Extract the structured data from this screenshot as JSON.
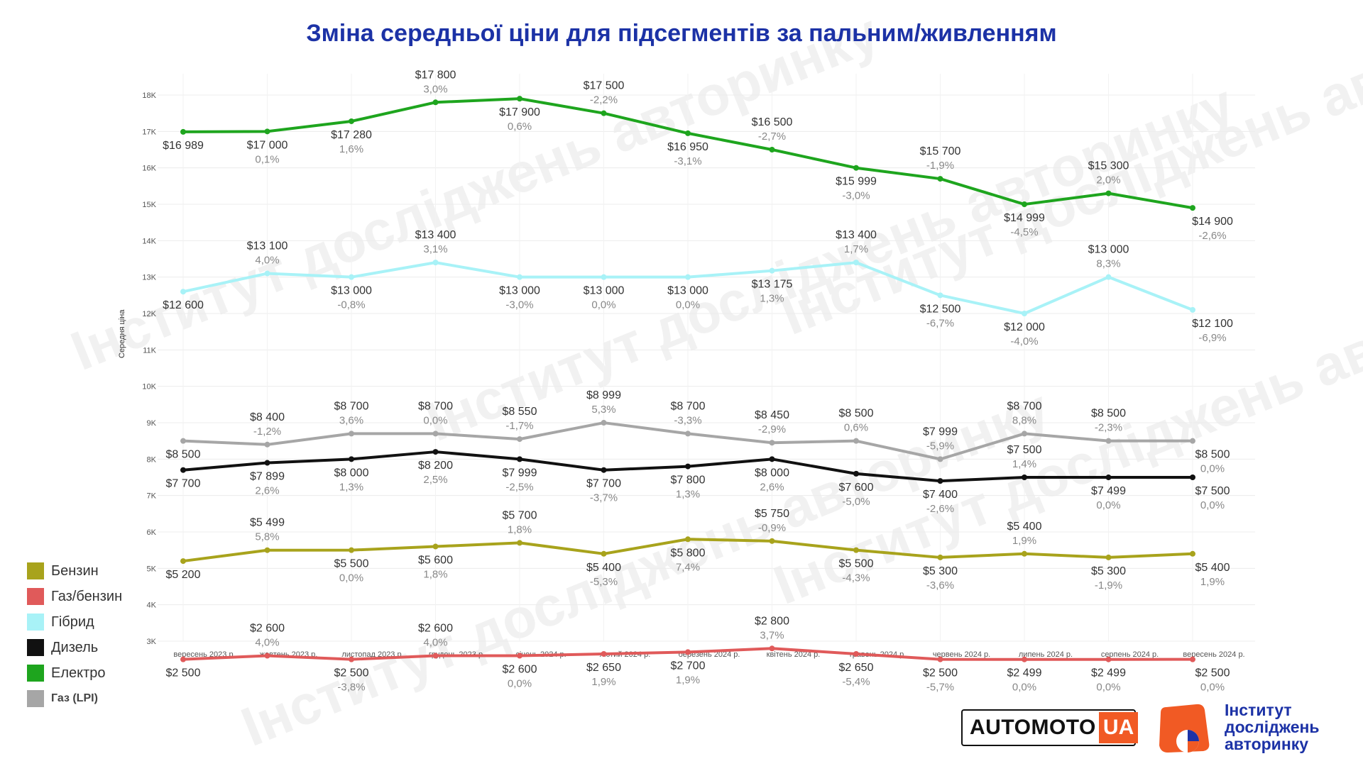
{
  "title": "Зміна середньої ціни для підсегментів за пальним/живленням",
  "watermark_text": "Інститут досліджень авторинку",
  "chart_data": {
    "type": "line",
    "title": "Зміна середньої ціни для підсегментів за пальним/живленням",
    "xlabel": "",
    "ylabel": "Середня ціна",
    "ylim": [
      3000,
      18000
    ],
    "yticks": [
      "3K",
      "4K",
      "5K",
      "6K",
      "7K",
      "8K",
      "9K",
      "10K",
      "11K",
      "12K",
      "13K",
      "14K",
      "15K",
      "16K",
      "17K",
      "18K"
    ],
    "grid": true,
    "legend_position": "bottom-left",
    "categories": [
      "вересень 2023 р.",
      "жовтень 2023 р.",
      "листопад 2023 р.",
      "грудень 2023 р.",
      "січень 2024 р.",
      "лютий 2024 р.",
      "березень 2024 р.",
      "квітень 2024 р.",
      "травень 2024 р.",
      "червень 2024 р.",
      "липень 2024 р.",
      "серпень 2024 р.",
      "вересень 2024 р."
    ],
    "series": [
      {
        "name": "Бензин",
        "color": "#a8a31c",
        "values": [
          5200,
          5499,
          5500,
          5600,
          5700,
          5400,
          5800,
          5750,
          5500,
          5300,
          5400,
          5300,
          5400
        ],
        "price_labels": [
          "$5 200",
          "$5 499",
          "$5 500",
          "$5 600",
          "$5 700",
          "$5 400",
          "$5 800",
          "$5 750",
          "$5 500",
          "$5 300",
          "$5 400",
          "$5 300",
          "$5 400"
        ],
        "change_labels": [
          "",
          "5,8%",
          "0,0%",
          "1,8%",
          "1,8%",
          "-5,3%",
          "7,4%",
          "-0,9%",
          "-4,3%",
          "-3,6%",
          "1,9%",
          "-1,9%",
          "1,9%"
        ],
        "label_pos": [
          "left",
          "above",
          "below",
          "below",
          "above",
          "below",
          "below",
          "above",
          "below",
          "below",
          "above",
          "below",
          "right"
        ]
      },
      {
        "name": "Газ/бензин",
        "color": "#e05a5a",
        "values": [
          2500,
          2600,
          2500,
          2600,
          2600,
          2650,
          2700,
          2800,
          2650,
          2500,
          2499,
          2499,
          2500
        ],
        "price_labels": [
          "$2 500",
          "$2 600",
          "$2 500",
          "$2 600",
          "$2 600",
          "$2 650",
          "$2 700",
          "$2 800",
          "$2 650",
          "$2 500",
          "$2 499",
          "$2 499",
          "$2 500"
        ],
        "change_labels": [
          "",
          "4,0%",
          "-3,8%",
          "4,0%",
          "0,0%",
          "1,9%",
          "1,9%",
          "3,7%",
          "-5,4%",
          "-5,7%",
          "0,0%",
          "0,0%",
          "0,0%"
        ],
        "label_pos": [
          "left",
          "above",
          "below",
          "above",
          "below",
          "below",
          "below",
          "above",
          "below",
          "below",
          "below",
          "below",
          "right"
        ]
      },
      {
        "name": "Гібрид",
        "color": "#a8f2f7",
        "values": [
          12600,
          13100,
          13000,
          13400,
          13000,
          13000,
          13000,
          13175,
          13400,
          12500,
          12000,
          13000,
          12100
        ],
        "price_labels": [
          "$12 600",
          "$13 100",
          "$13 000",
          "$13 400",
          "$13 000",
          "$13 000",
          "$13 000",
          "$13 175",
          "$13 400",
          "$12 500",
          "$12 000",
          "$13 000",
          "$12 100"
        ],
        "change_labels": [
          "",
          "4,0%",
          "-0,8%",
          "3,1%",
          "-3,0%",
          "0,0%",
          "0,0%",
          "1,3%",
          "1,7%",
          "-6,7%",
          "-4,0%",
          "8,3%",
          "-6,9%"
        ],
        "label_pos": [
          "left",
          "above",
          "below",
          "above",
          "below",
          "below",
          "below",
          "below",
          "above",
          "below",
          "below",
          "above",
          "right"
        ]
      },
      {
        "name": "Дизель",
        "color": "#111111",
        "values": [
          7700,
          7899,
          8000,
          8200,
          7999,
          7700,
          7800,
          8000,
          7600,
          7400,
          7500,
          7499,
          7500
        ],
        "price_labels": [
          "$7 700",
          "$7 899",
          "$8 000",
          "$8 200",
          "$7 999",
          "$7 700",
          "$7 800",
          "$8 000",
          "$7 600",
          "$7 400",
          "$7 500",
          "$7 499",
          "$7 500"
        ],
        "change_labels": [
          "",
          "2,6%",
          "1,3%",
          "2,5%",
          "-2,5%",
          "-3,7%",
          "1,3%",
          "2,6%",
          "-5,0%",
          "-2,6%",
          "1,4%",
          "0,0%",
          "0,0%"
        ],
        "label_pos": [
          "left",
          "below",
          "below",
          "below",
          "below",
          "below",
          "below",
          "below",
          "below",
          "below",
          "above",
          "below",
          "right"
        ]
      },
      {
        "name": "Електро",
        "color": "#1ea51e",
        "values": [
          16989,
          17000,
          17280,
          17800,
          17900,
          17500,
          16950,
          16500,
          15999,
          15700,
          14999,
          15300,
          14900
        ],
        "price_labels": [
          "$16 989",
          "$17 000",
          "$17 280",
          "$17 800",
          "$17 900",
          "$17 500",
          "$16 950",
          "$16 500",
          "$15 999",
          "$15 700",
          "$14 999",
          "$15 300",
          "$14 900"
        ],
        "change_labels": [
          "",
          "0,1%",
          "1,6%",
          "3,0%",
          "0,6%",
          "-2,2%",
          "-3,1%",
          "-2,7%",
          "-3,0%",
          "-1,9%",
          "-4,5%",
          "2,0%",
          "-2,6%"
        ],
        "label_pos": [
          "left",
          "below",
          "below",
          "above",
          "below",
          "above",
          "below",
          "above",
          "below",
          "above",
          "below",
          "above",
          "right"
        ]
      },
      {
        "name": "Газ (LPI)",
        "color": "#a6a6a6",
        "values": [
          8500,
          8400,
          8700,
          8700,
          8550,
          8999,
          8700,
          8450,
          8500,
          7999,
          8700,
          8500,
          8500
        ],
        "price_labels": [
          "$8 500",
          "$8 400",
          "$8 700",
          "$8 700",
          "$8 550",
          "$8 999",
          "$8 700",
          "$8 450",
          "$8 500",
          "$7 999",
          "$8 700",
          "$8 500",
          "$8 500"
        ],
        "change_labels": [
          "",
          "-1,2%",
          "3,6%",
          "0,0%",
          "-1,7%",
          "5,3%",
          "-3,3%",
          "-2,9%",
          "0,6%",
          "-5,9%",
          "8,8%",
          "-2,3%",
          "0,0%"
        ],
        "label_pos": [
          "left",
          "above",
          "above",
          "above",
          "above",
          "above",
          "above",
          "above",
          "above",
          "above",
          "above",
          "above",
          "right"
        ]
      }
    ]
  },
  "logos": {
    "automoto_text": "AUTOMOTO",
    "automoto_ua": "UA",
    "institute_line1": "Інститут",
    "institute_line2": "досліджень",
    "institute_line3": "авторинку"
  }
}
